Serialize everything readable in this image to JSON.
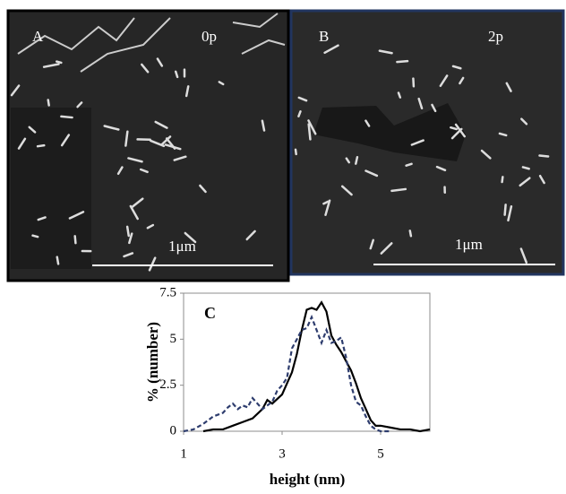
{
  "panels": [
    {
      "label": "A",
      "condition": "0p",
      "scale": "1μm"
    },
    {
      "label": "B",
      "condition": "2p",
      "scale": "1μm"
    }
  ],
  "chart_data": {
    "type": "line",
    "annotation": "C",
    "x_label": "height (nm)",
    "y_label": "% (number)",
    "xlim": [
      1,
      6
    ],
    "xticks": [
      1,
      3,
      5
    ],
    "ylim": [
      0,
      7.5
    ],
    "yticks": [
      0,
      2.5,
      5,
      7.5
    ],
    "series": [
      {
        "color": "#000000",
        "dash": false,
        "x": [
          1.4,
          1.6,
          1.8,
          2.0,
          2.2,
          2.4,
          2.6,
          2.7,
          2.8,
          3.0,
          3.1,
          3.2,
          3.3,
          3.4,
          3.5,
          3.6,
          3.7,
          3.8,
          3.9,
          4.0,
          4.1,
          4.2,
          4.3,
          4.4,
          4.5,
          4.6,
          4.7,
          4.8,
          4.9,
          5.0,
          5.2,
          5.4,
          5.6,
          5.8,
          6.0
        ],
        "values": [
          0,
          0.1,
          0.1,
          0.3,
          0.5,
          0.7,
          1.2,
          1.7,
          1.5,
          2.0,
          2.6,
          3.2,
          4.2,
          5.5,
          6.6,
          6.7,
          6.6,
          7.0,
          6.5,
          5.2,
          4.7,
          4.3,
          3.8,
          3.3,
          2.6,
          1.8,
          1.2,
          0.6,
          0.3,
          0.3,
          0.2,
          0.1,
          0.1,
          0,
          0.1
        ]
      },
      {
        "color": "#2e3d6e",
        "dash": true,
        "x": [
          1.0,
          1.2,
          1.4,
          1.6,
          1.8,
          1.9,
          2.0,
          2.1,
          2.2,
          2.3,
          2.4,
          2.5,
          2.6,
          2.7,
          2.8,
          2.9,
          3.0,
          3.1,
          3.2,
          3.3,
          3.4,
          3.5,
          3.6,
          3.7,
          3.8,
          3.9,
          4.0,
          4.1,
          4.2,
          4.3,
          4.4,
          4.5,
          4.6,
          4.7,
          4.8,
          4.9,
          5.0,
          5.2
        ],
        "values": [
          0,
          0.1,
          0.4,
          0.8,
          1.0,
          1.3,
          1.5,
          1.2,
          1.4,
          1.3,
          1.8,
          1.5,
          1.2,
          1.4,
          1.6,
          2.2,
          2.5,
          2.9,
          4.5,
          5.0,
          5.5,
          5.6,
          6.2,
          5.5,
          4.8,
          5.5,
          4.8,
          4.9,
          5.1,
          4.0,
          2.5,
          1.6,
          1.4,
          0.8,
          0.3,
          0.1,
          0,
          0
        ]
      }
    ]
  }
}
